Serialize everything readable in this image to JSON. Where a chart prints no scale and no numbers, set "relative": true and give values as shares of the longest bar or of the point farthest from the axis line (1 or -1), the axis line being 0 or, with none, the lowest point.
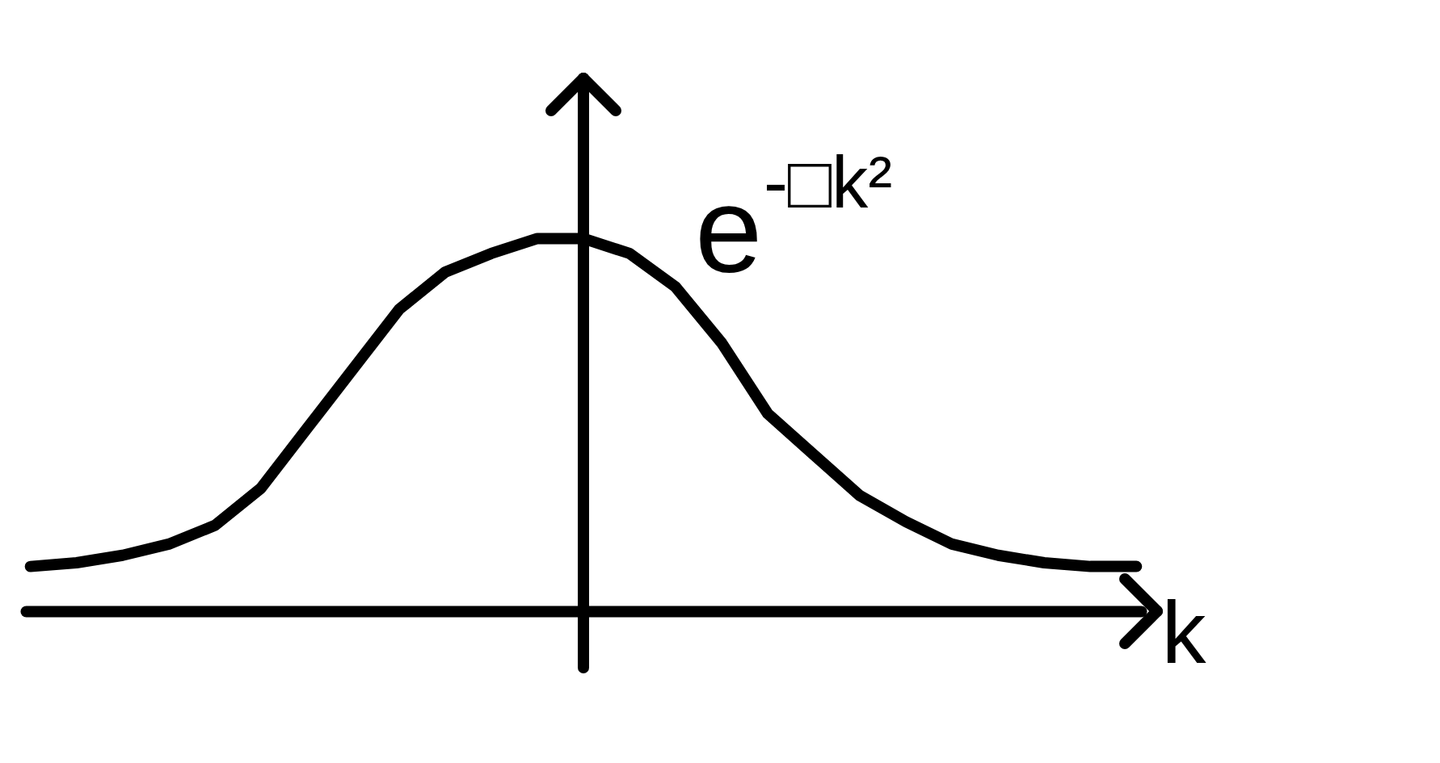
{
  "chart_data": {
    "type": "line",
    "relative": true,
    "xlabel": "k",
    "annotations": [
      "e$^{-□k²}$"
    ],
    "grid": false,
    "marker": "none",
    "line_style": "solid",
    "tick_labels": false,
    "categories": [
      null,
      null,
      null,
      null,
      null,
      null,
      null,
      null,
      null,
      null,
      null,
      null,
      null,
      null,
      null,
      null,
      null,
      null,
      null,
      null,
      null,
      null,
      null,
      null,
      null
    ],
    "series": [
      {
        "color": "#000000",
        "values": [
          0.12,
          0.13,
          0.15,
          0.18,
          0.23,
          0.33,
          0.49,
          0.65,
          0.81,
          0.91,
          0.96,
          1.0,
          1.0,
          0.96,
          0.87,
          0.72,
          0.53,
          0.42,
          0.31,
          0.24,
          0.18,
          0.15,
          0.13,
          0.12,
          0.12
        ]
      }
    ]
  }
}
